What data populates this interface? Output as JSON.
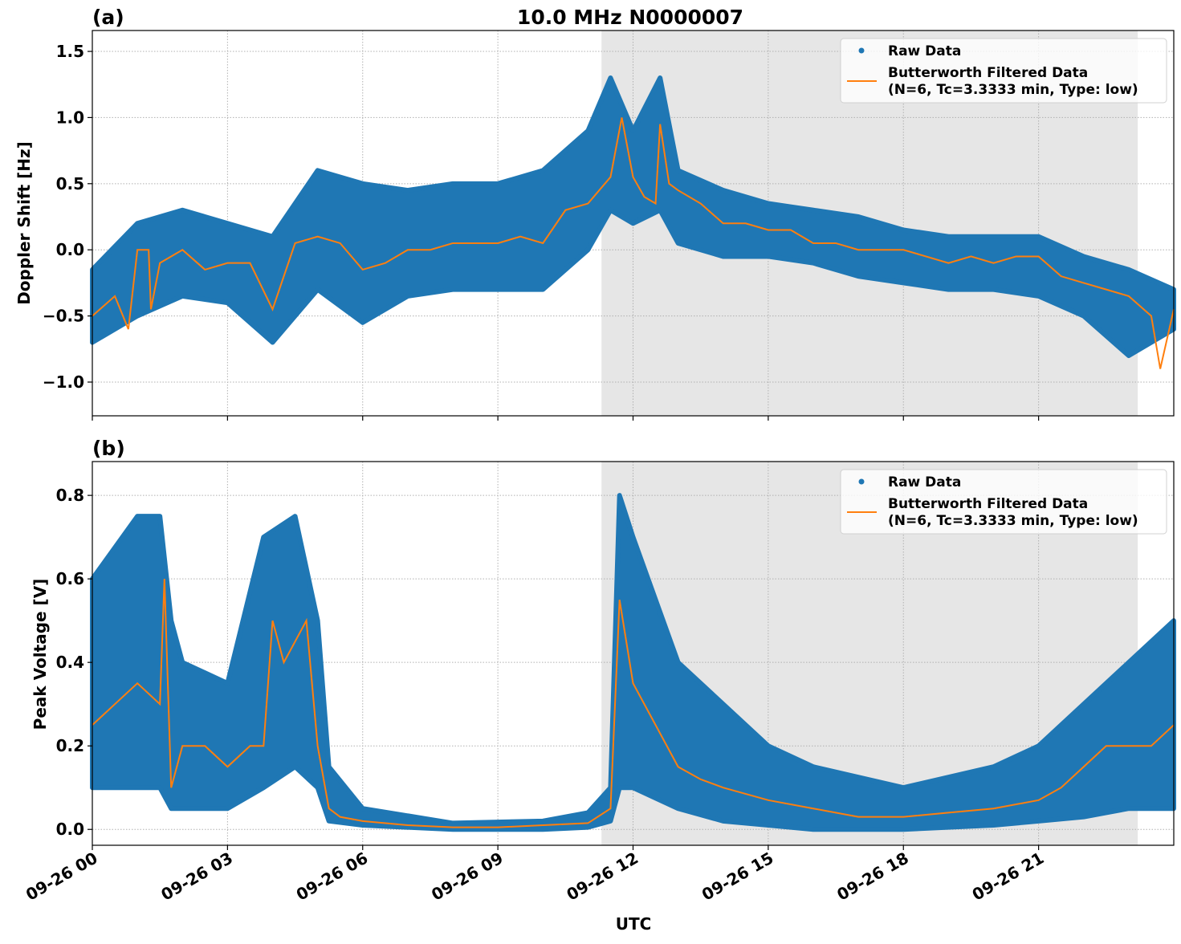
{
  "figure": {
    "title": "10.0 MHz N0000007",
    "xlabel": "UTC"
  },
  "colors": {
    "raw": "#1f77b4",
    "filtered": "#ff7f0e",
    "shade": "#e6e6e6"
  },
  "chart_data": [
    {
      "type": "scatter",
      "panel_label": "(a)",
      "title": "10.0 MHz N0000007",
      "xlabel": "",
      "ylabel": "Doppler Shift [Hz]",
      "x_unit": "hours UTC on 09-26",
      "xlim": [
        0,
        24
      ],
      "ylim": [
        -1.255,
        1.658
      ],
      "xticks": [
        0,
        3,
        6,
        9,
        12,
        15,
        18,
        21
      ],
      "yticks": [
        -1.0,
        -0.5,
        0.0,
        0.5,
        1.0,
        1.5
      ],
      "ytick_labels": [
        "−1.0",
        "−0.5",
        "0.0",
        "0.5",
        "1.0",
        "1.5"
      ],
      "grid": true,
      "shaded_interval": [
        11.3,
        23.2
      ],
      "legend": {
        "placement": "top-right",
        "entries": [
          "Raw Data",
          "Butterworth Filtered Data",
          "(N=6, Tc=3.3333 min, Type: low)"
        ]
      },
      "series": [
        {
          "name": "Raw Data",
          "kind": "scatter-envelope",
          "x": [
            0,
            1,
            2,
            3,
            4,
            5,
            6,
            7,
            8,
            9,
            10,
            11,
            11.5,
            12,
            12.6,
            13,
            14,
            15,
            16,
            17,
            18,
            19,
            20,
            21,
            22,
            23,
            24
          ],
          "lower": [
            -0.7,
            -0.5,
            -0.35,
            -0.4,
            -0.7,
            -0.3,
            -0.55,
            -0.35,
            -0.3,
            -0.3,
            -0.3,
            0.0,
            0.3,
            0.2,
            0.3,
            0.05,
            -0.05,
            -0.05,
            -0.1,
            -0.2,
            -0.25,
            -0.3,
            -0.3,
            -0.35,
            -0.5,
            -0.8,
            -0.6
          ],
          "upper": [
            -0.15,
            0.2,
            0.3,
            0.2,
            0.1,
            0.6,
            0.5,
            0.45,
            0.5,
            0.5,
            0.6,
            0.9,
            1.3,
            0.9,
            1.3,
            0.6,
            0.45,
            0.35,
            0.3,
            0.25,
            0.15,
            0.1,
            0.1,
            0.1,
            -0.05,
            -0.15,
            -0.3
          ]
        },
        {
          "name": "Butterworth Filtered Data",
          "kind": "line",
          "x": [
            0,
            0.5,
            0.8,
            1.0,
            1.25,
            1.3,
            1.5,
            2.0,
            2.5,
            3.0,
            3.5,
            4.0,
            4.5,
            5.0,
            5.5,
            6.0,
            6.5,
            7.0,
            7.5,
            8.0,
            8.5,
            9.0,
            9.5,
            10,
            10.5,
            11,
            11.5,
            11.75,
            12,
            12.25,
            12.5,
            12.6,
            12.8,
            13,
            13.5,
            14,
            14.5,
            15,
            15.5,
            16,
            16.5,
            17,
            17.5,
            18,
            18.5,
            19,
            19.5,
            20,
            20.5,
            21,
            21.5,
            22,
            22.5,
            23,
            23.5,
            23.7,
            24
          ],
          "y": [
            -0.5,
            -0.35,
            -0.6,
            0.0,
            0.0,
            -0.45,
            -0.1,
            0.0,
            -0.15,
            -0.1,
            -0.1,
            -0.45,
            0.05,
            0.1,
            0.05,
            -0.15,
            -0.1,
            0.0,
            0.0,
            0.05,
            0.05,
            0.05,
            0.1,
            0.05,
            0.3,
            0.35,
            0.55,
            1.0,
            0.55,
            0.4,
            0.35,
            0.95,
            0.5,
            0.45,
            0.35,
            0.2,
            0.2,
            0.15,
            0.15,
            0.05,
            0.05,
            0.0,
            0.0,
            0.0,
            -0.05,
            -0.1,
            -0.05,
            -0.1,
            -0.05,
            -0.05,
            -0.2,
            -0.25,
            -0.3,
            -0.35,
            -0.5,
            -0.9,
            -0.45
          ]
        }
      ]
    },
    {
      "type": "scatter",
      "panel_label": "(b)",
      "xlabel": "UTC",
      "ylabel": "Peak Voltage [V]",
      "x_unit": "hours UTC on 09-26",
      "xlim": [
        0,
        24
      ],
      "ylim": [
        -0.038,
        0.881
      ],
      "xticks": [
        0,
        3,
        6,
        9,
        12,
        15,
        18,
        21
      ],
      "xtick_labels": [
        "09-26 00",
        "09-26 03",
        "09-26 06",
        "09-26 09",
        "09-26 12",
        "09-26 15",
        "09-26 18",
        "09-26 21"
      ],
      "yticks": [
        0.0,
        0.2,
        0.4,
        0.6,
        0.8
      ],
      "ytick_labels": [
        "0.0",
        "0.2",
        "0.4",
        "0.6",
        "0.8"
      ],
      "grid": true,
      "shaded_interval": [
        11.3,
        23.2
      ],
      "legend": {
        "placement": "top-right",
        "entries": [
          "Raw Data",
          "Butterworth Filtered Data",
          "(N=6, Tc=3.3333 min, Type: low)"
        ]
      },
      "series": [
        {
          "name": "Raw Data",
          "kind": "scatter-envelope",
          "x": [
            0,
            1,
            1.5,
            1.75,
            2,
            3,
            3.8,
            4.5,
            5,
            5.25,
            6,
            8,
            10,
            11,
            11.5,
            11.7,
            12,
            13,
            14,
            15,
            16,
            18,
            20,
            21,
            22,
            23,
            24
          ],
          "lower": [
            0.1,
            0.1,
            0.1,
            0.05,
            0.05,
            0.05,
            0.1,
            0.15,
            0.1,
            0.02,
            0.01,
            0.0,
            0.0,
            0.005,
            0.02,
            0.1,
            0.1,
            0.05,
            0.02,
            0.01,
            0.0,
            0.0,
            0.01,
            0.02,
            0.03,
            0.05,
            0.05
          ],
          "upper": [
            0.6,
            0.75,
            0.75,
            0.5,
            0.4,
            0.35,
            0.7,
            0.75,
            0.5,
            0.15,
            0.05,
            0.015,
            0.02,
            0.04,
            0.1,
            0.8,
            0.7,
            0.4,
            0.3,
            0.2,
            0.15,
            0.1,
            0.15,
            0.2,
            0.3,
            0.4,
            0.5
          ]
        },
        {
          "name": "Butterworth Filtered Data",
          "kind": "line",
          "x": [
            0,
            0.5,
            1,
            1.5,
            1.6,
            1.75,
            2,
            2.5,
            3,
            3.5,
            3.8,
            4,
            4.25,
            4.5,
            4.75,
            5,
            5.25,
            5.5,
            6,
            7,
            8,
            9,
            10,
            11,
            11.5,
            11.7,
            12,
            12.5,
            13,
            13.5,
            14,
            15,
            16,
            17,
            18,
            19,
            20,
            21,
            21.5,
            22,
            22.5,
            23,
            23.5,
            24
          ],
          "y": [
            0.25,
            0.3,
            0.35,
            0.3,
            0.6,
            0.1,
            0.2,
            0.2,
            0.15,
            0.2,
            0.2,
            0.5,
            0.4,
            0.45,
            0.5,
            0.2,
            0.05,
            0.03,
            0.02,
            0.01,
            0.005,
            0.005,
            0.01,
            0.015,
            0.05,
            0.55,
            0.35,
            0.25,
            0.15,
            0.12,
            0.1,
            0.07,
            0.05,
            0.03,
            0.03,
            0.04,
            0.05,
            0.07,
            0.1,
            0.15,
            0.2,
            0.2,
            0.2,
            0.25
          ]
        }
      ]
    }
  ]
}
